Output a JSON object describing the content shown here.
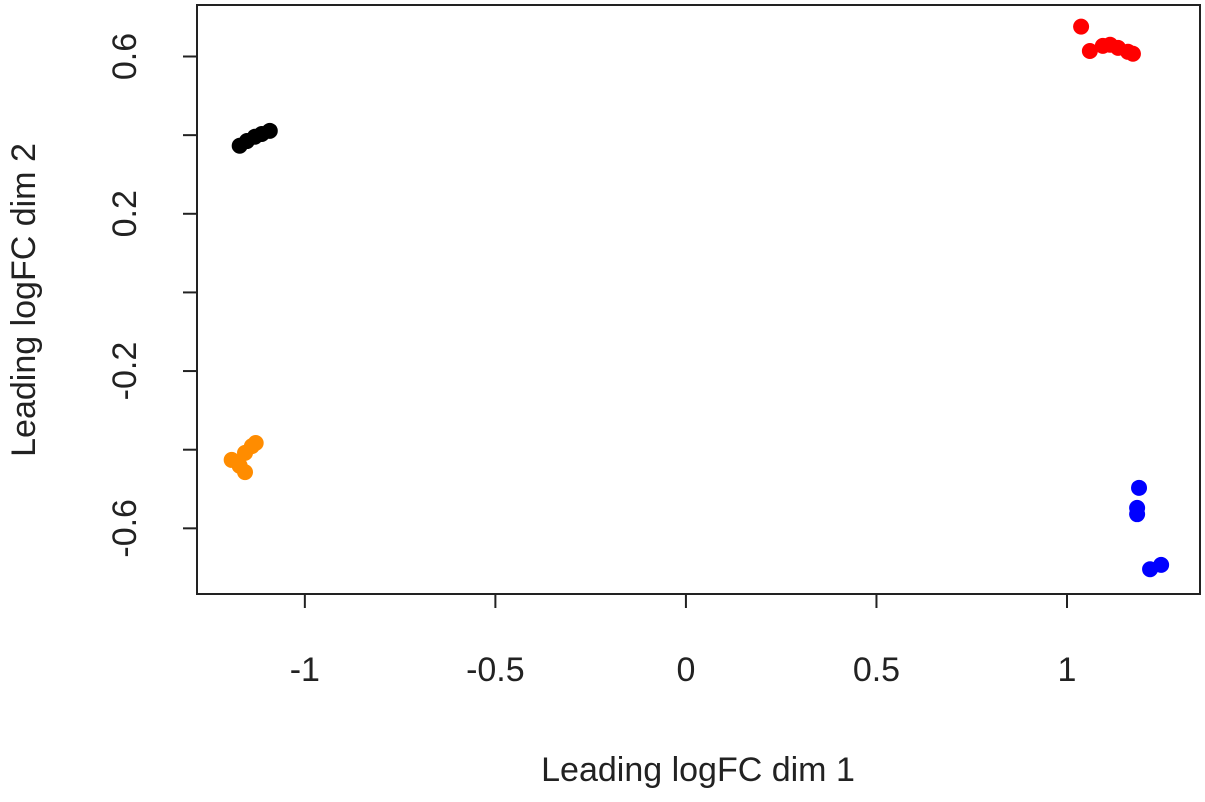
{
  "chart_data": {
    "type": "scatter",
    "xlabel": "Leading logFC dim 1",
    "ylabel": "Leading logFC dim 2",
    "xlim": [
      -1.283,
      1.349
    ],
    "ylim": [
      -0.767,
      0.731
    ],
    "xticks": [
      -1.0,
      -0.5,
      0.0,
      0.5,
      1.0
    ],
    "yticks": [
      -0.6,
      {
        "value": -0.4,
        "label": null
      },
      -0.2,
      {
        "value": 0.0,
        "label": null
      },
      0.2,
      {
        "value": 0.4,
        "label": null
      },
      0.6
    ],
    "series": [
      {
        "color": "#ff0000",
        "x": [
          1.037,
          1.06,
          1.094,
          1.113,
          1.134,
          1.16,
          1.173
        ],
        "y": [
          0.676,
          0.614,
          0.627,
          0.63,
          0.622,
          0.612,
          0.607
        ]
      },
      {
        "color": "#000000",
        "x": [
          -1.171,
          -1.152,
          -1.131,
          -1.113,
          -1.092
        ],
        "y": [
          0.373,
          0.385,
          0.396,
          0.403,
          0.411
        ]
      },
      {
        "color": "#ff8c00",
        "x": [
          -1.192,
          -1.171,
          -1.157,
          -1.157,
          -1.139,
          -1.129
        ],
        "y": [
          -0.426,
          -0.441,
          -0.457,
          -0.408,
          -0.391,
          -0.383
        ]
      },
      {
        "color": "#0000ff",
        "x": [
          1.189,
          1.184,
          1.184,
          1.218,
          1.247
        ],
        "y": [
          -0.497,
          -0.548,
          -0.564,
          -0.704,
          -0.693
        ]
      }
    ]
  }
}
